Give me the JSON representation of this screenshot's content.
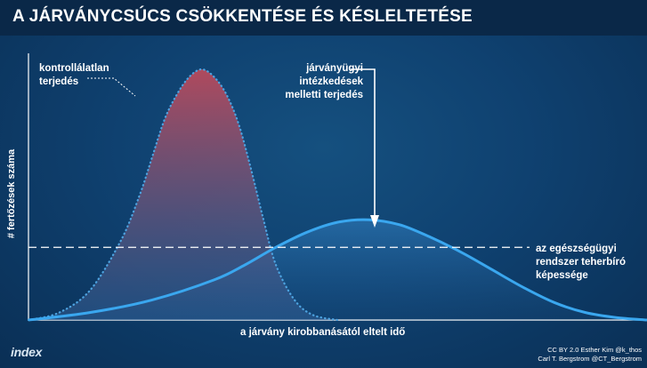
{
  "header": {
    "title": "A JÁRVÁNYCSÚCS CSÖKKENTÉSE ÉS KÉSLELTETÉSE"
  },
  "annotations": {
    "uncontrolled": [
      "kontrollálatlan",
      "terjedés"
    ],
    "measures": [
      "járványügyi",
      "intézkedések",
      "melletti terjedés"
    ],
    "capacity": [
      "az egészségügyi",
      "rendszer teherbíró",
      "képessége"
    ]
  },
  "footer": {
    "logo": "index",
    "credit_line1": "CC BY 2.0  Esther Kim  @k_thos",
    "credit_line2": "Carl T. Bergstrom  @CT_Bergstrom"
  },
  "colors": {
    "background": "#0f4170",
    "uncontrolled_top": "#b84a5c",
    "uncontrolled_bottom": "#2f5e94",
    "uncontrolled_edge": "#4da3e0",
    "measures_line": "#3aa7ef",
    "capacity_line": "#ffffff"
  },
  "chart_data": {
    "type": "area",
    "title": "A JÁRVÁNYCSÚCS CSÖKKENTÉSE ÉS KÉSLELTETÉSE",
    "xlabel": "a járvány kirobbanásától eltelt idő",
    "ylabel": "# fertőzések száma",
    "xlim": [
      0,
      100
    ],
    "ylim": [
      0,
      100
    ],
    "grid": false,
    "series": [
      {
        "name": "kontrollálatlan terjedés",
        "style": "filled-dotted",
        "x": [
          0,
          5,
          10,
          15,
          18,
          20,
          22,
          24,
          26,
          28,
          30,
          32,
          34,
          36,
          38,
          40,
          43,
          46,
          50
        ],
        "y": [
          0,
          3,
          12,
          32,
          50,
          65,
          80,
          90,
          97,
          100,
          97,
          90,
          78,
          60,
          40,
          22,
          8,
          2,
          0
        ]
      },
      {
        "name": "járványügyi intézkedések melletti terjedés",
        "style": "solid",
        "x": [
          0,
          10,
          20,
          30,
          35,
          40,
          45,
          50,
          55,
          60,
          65,
          70,
          75,
          80,
          85,
          90,
          95,
          100
        ],
        "y": [
          0,
          3,
          8,
          16,
          22,
          29,
          35,
          39,
          40,
          38,
          33,
          27,
          20,
          13,
          7,
          3,
          1,
          0
        ]
      }
    ],
    "reference_line": {
      "name": "az egészségügyi rendszer teherbíró képessége",
      "y": 29,
      "style": "dashed"
    }
  }
}
